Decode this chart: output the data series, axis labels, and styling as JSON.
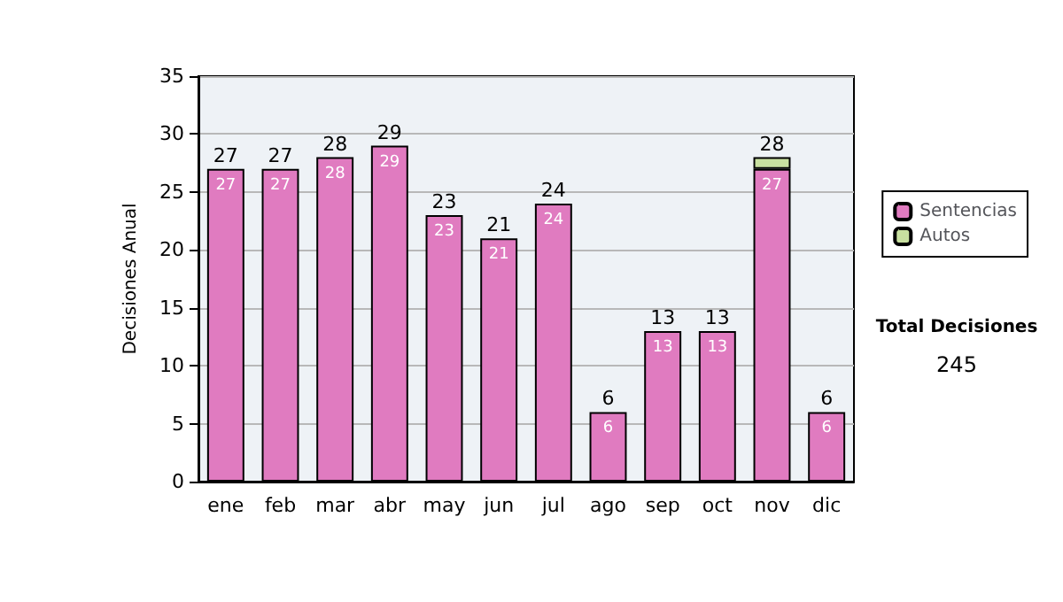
{
  "chart_data": {
    "type": "bar",
    "stacked": true,
    "ylabel": "Decisiones Anual",
    "categories": [
      "ene",
      "feb",
      "mar",
      "abr",
      "may",
      "jun",
      "jul",
      "ago",
      "sep",
      "oct",
      "nov",
      "dic"
    ],
    "series": [
      {
        "name": "Sentencias",
        "color": "#e07bc0",
        "values": [
          27,
          27,
          28,
          29,
          23,
          21,
          24,
          6,
          13,
          13,
          27,
          6
        ],
        "value_labels": [
          "27",
          "27",
          "28",
          "29",
          "23",
          "21",
          "24",
          "6",
          "13",
          "13",
          "27",
          "6"
        ]
      },
      {
        "name": "Autos",
        "color": "#c8e0a0",
        "values": [
          null,
          null,
          null,
          null,
          null,
          null,
          null,
          null,
          null,
          null,
          1,
          null
        ]
      }
    ],
    "totals": [
      "27",
      "27",
      "28",
      "29",
      "23",
      "21",
      "24",
      "6",
      "13",
      "13",
      "28",
      "6"
    ],
    "ylim": [
      0,
      35
    ],
    "yticks": [
      0,
      5,
      10,
      15,
      20,
      25,
      30,
      35
    ],
    "grid": "y",
    "legend": "right",
    "annotations": [
      "Total Decisiones",
      "245"
    ]
  }
}
